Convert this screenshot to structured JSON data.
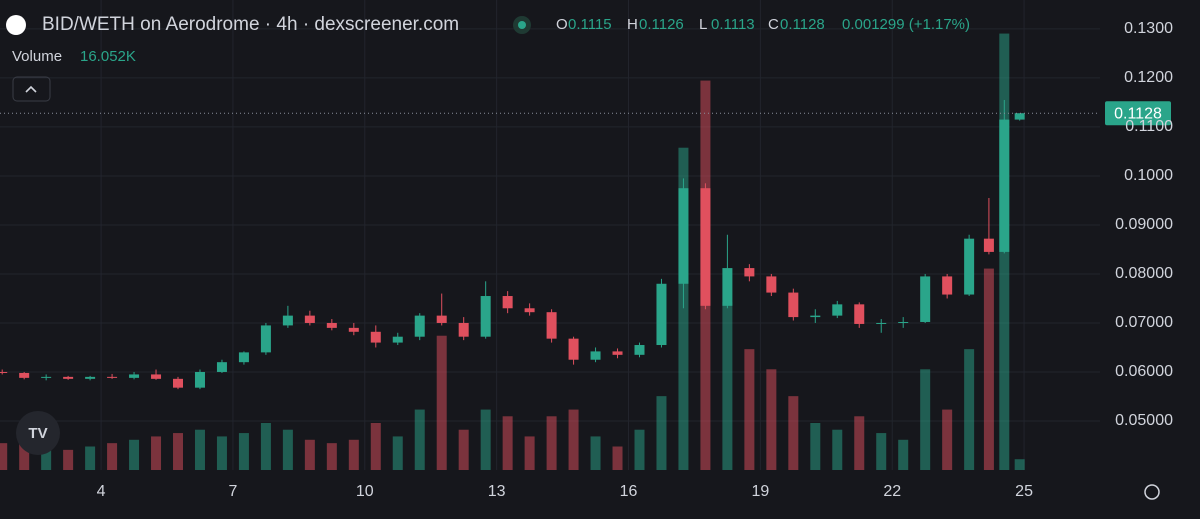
{
  "chart_data": {
    "type": "candlestick",
    "title": "BID/WETH on Aerodrome · 4h · dexscreener.com",
    "ohlc_labels": [
      "O",
      "H",
      "L",
      "C"
    ],
    "change_label": "0.001299 (+1.17%)",
    "volume_title": "Volume",
    "volume_label": "16.052K",
    "up_color": "#2aa58a",
    "down_color": "#e0505e",
    "x": [
      1.75,
      2.25,
      2.75,
      3.25,
      3.75,
      4.25,
      4.75,
      5.25,
      5.75,
      6.25,
      6.75,
      7.25,
      7.75,
      8.25,
      8.75,
      9.25,
      9.75,
      10.25,
      10.75,
      11.25,
      11.75,
      12.25,
      12.75,
      13.25,
      13.75,
      14.25,
      14.75,
      15.25,
      15.75,
      16.25,
      16.75,
      17.25,
      17.75,
      18.25,
      18.75,
      19.25,
      19.75,
      20.25,
      20.75,
      21.25,
      21.75,
      22.25,
      22.75,
      23.25,
      23.75,
      24.2,
      24.55,
      24.9
    ],
    "open": [
      0.06,
      0.0598,
      0.0588,
      0.059,
      0.0586,
      0.059,
      0.0588,
      0.0595,
      0.0586,
      0.0568,
      0.06,
      0.062,
      0.064,
      0.0695,
      0.0715,
      0.07,
      0.069,
      0.0682,
      0.066,
      0.0672,
      0.0715,
      0.07,
      0.0672,
      0.0755,
      0.073,
      0.0722,
      0.0668,
      0.0625,
      0.0642,
      0.0635,
      0.0655,
      0.078,
      0.0975,
      0.0735,
      0.0812,
      0.0795,
      0.0762,
      0.0712,
      0.0715,
      0.0738,
      0.0698,
      0.07,
      0.0702,
      0.0795,
      0.0758,
      0.0872,
      0.0845,
      0.1115
    ],
    "high": [
      0.0605,
      0.06,
      0.0595,
      0.0592,
      0.0592,
      0.0596,
      0.06,
      0.0605,
      0.059,
      0.0605,
      0.0625,
      0.0642,
      0.07,
      0.0735,
      0.0725,
      0.0708,
      0.07,
      0.0695,
      0.068,
      0.072,
      0.076,
      0.0712,
      0.0785,
      0.0765,
      0.074,
      0.0728,
      0.0672,
      0.065,
      0.0648,
      0.066,
      0.079,
      0.0995,
      0.0985,
      0.088,
      0.082,
      0.08,
      0.077,
      0.0728,
      0.0745,
      0.0742,
      0.0708,
      0.0712,
      0.08,
      0.08,
      0.088,
      0.0955,
      0.1155,
      0.1126
    ],
    "low": [
      0.0595,
      0.0585,
      0.0583,
      0.0584,
      0.0583,
      0.0586,
      0.0585,
      0.0584,
      0.0565,
      0.0565,
      0.0598,
      0.0615,
      0.0635,
      0.069,
      0.0695,
      0.0685,
      0.0675,
      0.065,
      0.0655,
      0.0665,
      0.0695,
      0.0665,
      0.0668,
      0.072,
      0.0715,
      0.066,
      0.0615,
      0.062,
      0.0628,
      0.063,
      0.065,
      0.073,
      0.0728,
      0.073,
      0.0785,
      0.0755,
      0.0705,
      0.07,
      0.071,
      0.069,
      0.068,
      0.069,
      0.07,
      0.075,
      0.0755,
      0.084,
      0.0842,
      0.1113
    ],
    "close": [
      0.0598,
      0.0588,
      0.059,
      0.0586,
      0.059,
      0.0588,
      0.0595,
      0.0586,
      0.0568,
      0.06,
      0.062,
      0.064,
      0.0695,
      0.0715,
      0.07,
      0.069,
      0.0682,
      0.066,
      0.0672,
      0.0715,
      0.07,
      0.0672,
      0.0755,
      0.073,
      0.0722,
      0.0668,
      0.0625,
      0.0642,
      0.0635,
      0.0655,
      0.078,
      0.0975,
      0.0735,
      0.0812,
      0.0795,
      0.0762,
      0.0712,
      0.0715,
      0.0738,
      0.0698,
      0.07,
      0.0702,
      0.0795,
      0.0758,
      0.0872,
      0.0845,
      0.1115,
      0.1128
    ],
    "volume": [
      40000,
      45000,
      35000,
      30000,
      35000,
      40000,
      45000,
      50000,
      55000,
      60000,
      50000,
      55000,
      70000,
      60000,
      45000,
      40000,
      45000,
      70000,
      50000,
      90000,
      200000,
      60000,
      90000,
      80000,
      50000,
      80000,
      90000,
      50000,
      35000,
      60000,
      110000,
      480000,
      580000,
      250000,
      180000,
      150000,
      110000,
      70000,
      60000,
      80000,
      55000,
      45000,
      150000,
      90000,
      180000,
      300000,
      650000,
      16052
    ],
    "xlim": [
      1.7,
      26.5
    ],
    "xticks": [
      4,
      7,
      10,
      13,
      16,
      19,
      22,
      25
    ],
    "ylim": [
      0.04,
      0.1359
    ],
    "yticks": [
      {
        "value": 0.05,
        "label": "0.05000"
      },
      {
        "value": 0.06,
        "label": "0.06000"
      },
      {
        "value": 0.07,
        "label": "0.07000"
      },
      {
        "value": 0.08,
        "label": "0.08000"
      },
      {
        "value": 0.09,
        "label": "0.09000"
      },
      {
        "value": 0.1,
        "label": "0.1000"
      },
      {
        "value": 0.11,
        "label": "0.1100"
      },
      {
        "value": 0.12,
        "label": "0.1200"
      },
      {
        "value": 0.13,
        "label": "0.1300"
      }
    ],
    "volume_lim": [
      0,
      700000
    ],
    "grid": true
  }
}
